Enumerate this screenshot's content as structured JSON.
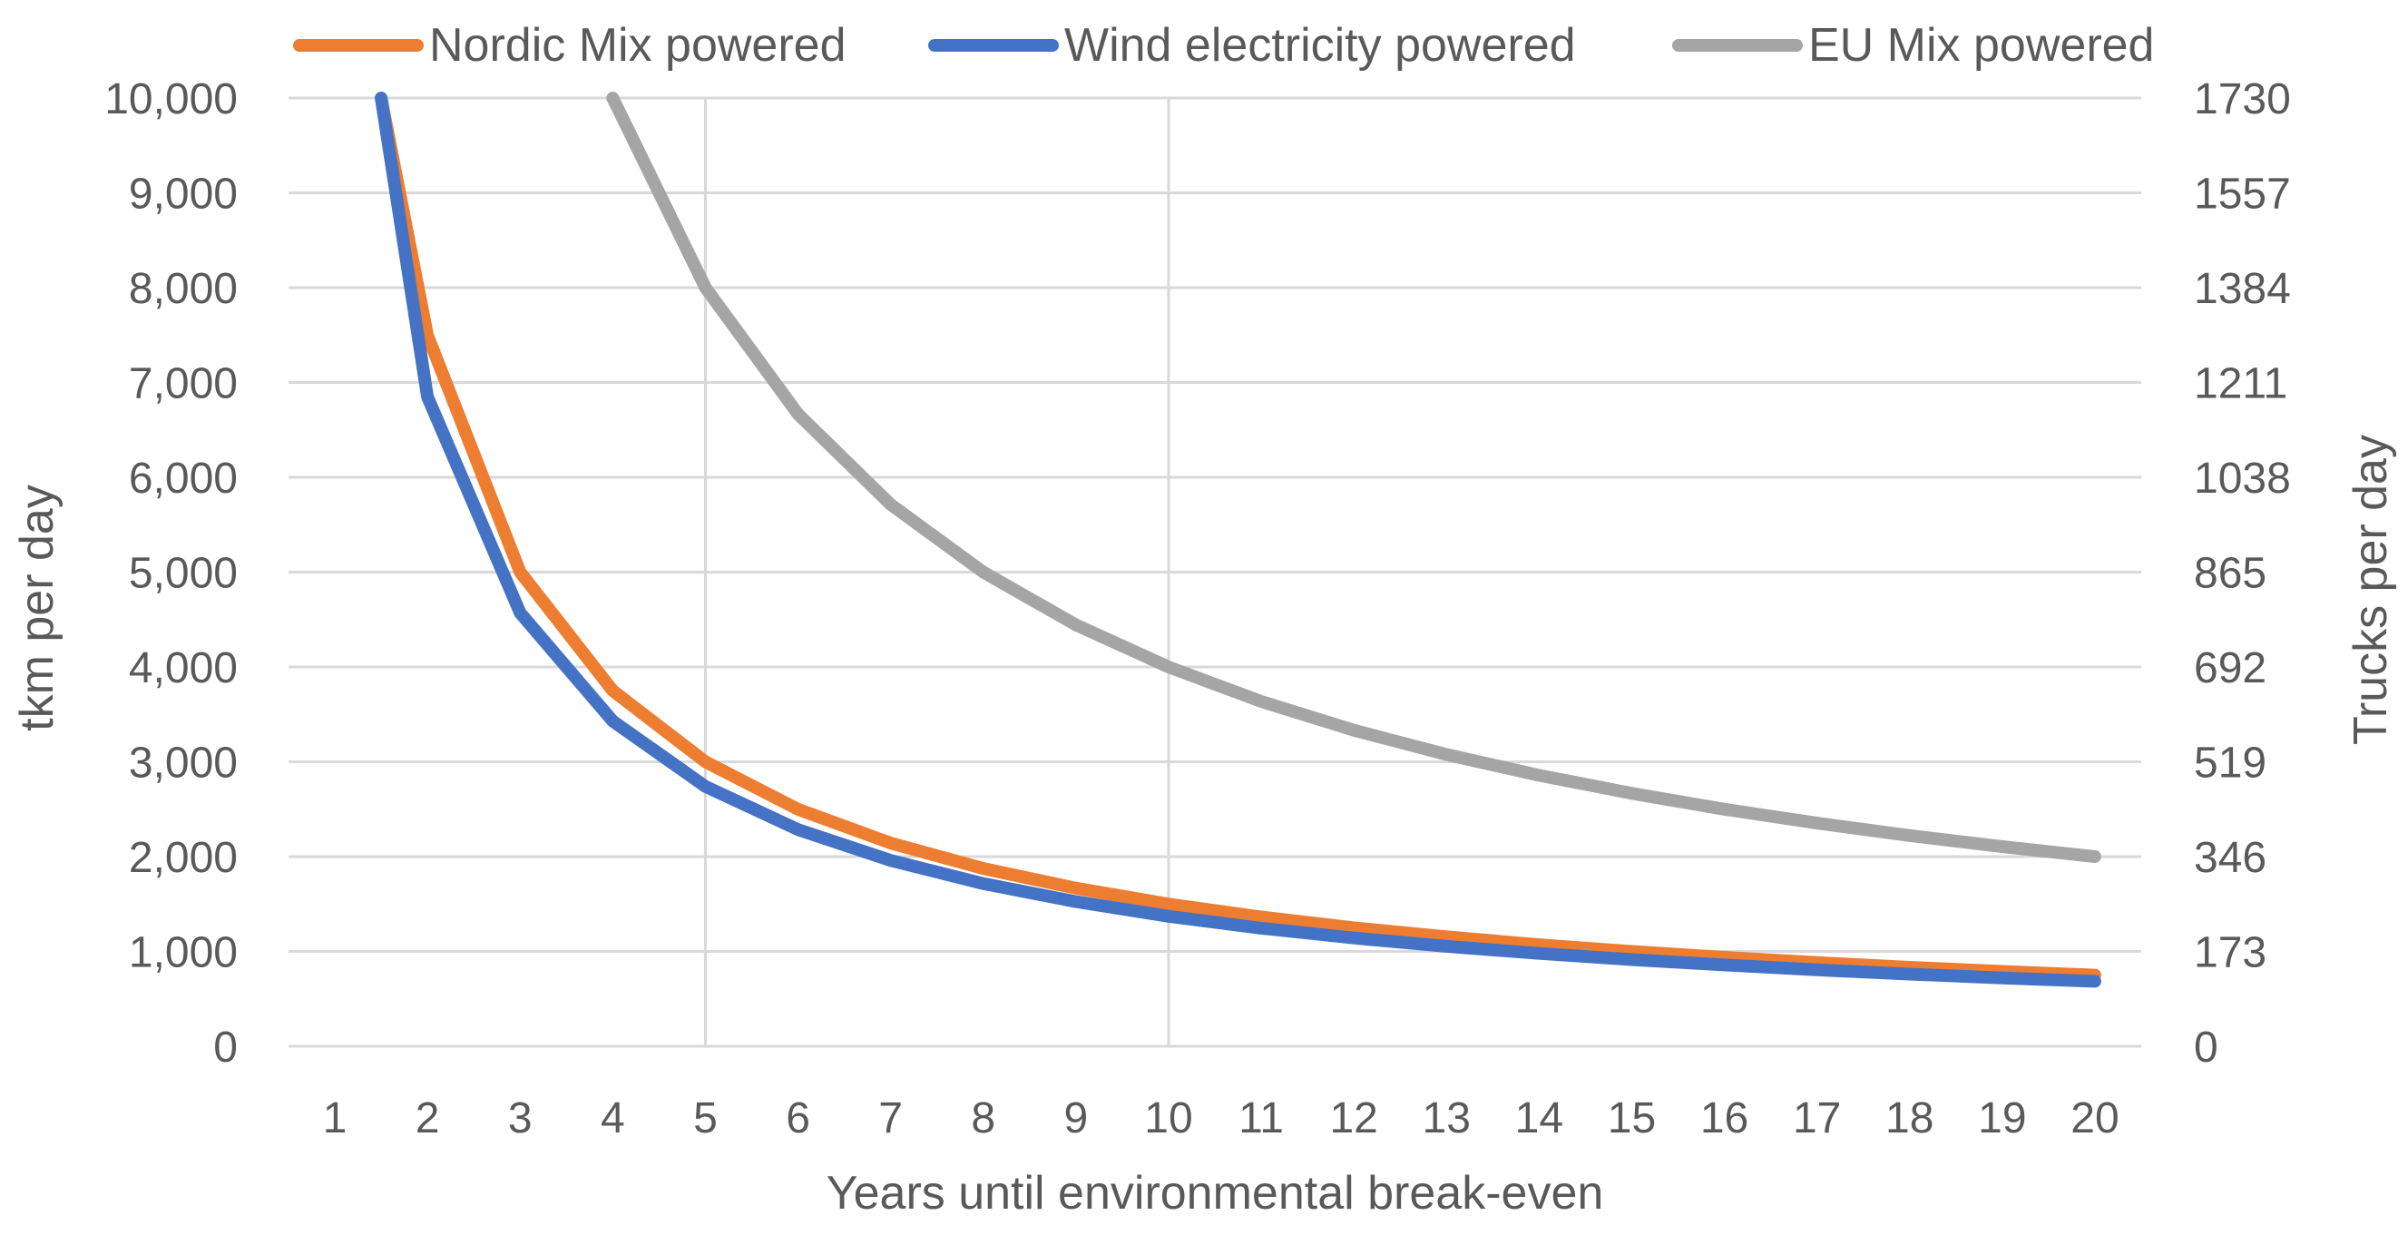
{
  "chart_data": {
    "type": "line",
    "title": "",
    "xlabel": "Years until environmental break-even",
    "ylabel": "tkm per day",
    "y2label": "Trucks per day",
    "categories": [
      "1",
      "2",
      "3",
      "4",
      "5",
      "6",
      "7",
      "8",
      "9",
      "10",
      "11",
      "12",
      "13",
      "14",
      "15",
      "16",
      "17",
      "18",
      "19",
      "20"
    ],
    "ylim": [
      0,
      10000
    ],
    "y_ticks": [
      "0",
      "1,000",
      "2,000",
      "3,000",
      "4,000",
      "5,000",
      "6,000",
      "7,000",
      "8,000",
      "9,000",
      "10,000"
    ],
    "y2_ticks": [
      "0",
      "173",
      "346",
      "519",
      "692",
      "865",
      "1038",
      "1211",
      "1384",
      "1557",
      "1730"
    ],
    "vertical_gridlines_at": [
      5,
      10
    ],
    "legend_position": "top",
    "series": [
      {
        "name": "Nordic Mix powered",
        "color": "#ED7D31",
        "x": [
          1.5,
          2,
          3,
          4,
          5,
          6,
          7,
          8,
          9,
          10,
          11,
          12,
          13,
          14,
          15,
          16,
          17,
          18,
          19,
          20
        ],
        "values": [
          10000,
          7500,
          5000,
          3750,
          3000,
          2500,
          2143,
          1875,
          1667,
          1500,
          1364,
          1250,
          1154,
          1071,
          1000,
          938,
          882,
          833,
          789,
          750
        ]
      },
      {
        "name": "Wind electricity powered",
        "color": "#4472C4",
        "x": [
          1.5,
          2,
          3,
          4,
          5,
          6,
          7,
          8,
          9,
          10,
          11,
          12,
          13,
          14,
          15,
          16,
          17,
          18,
          19,
          20
        ],
        "values": [
          10000,
          6850,
          4570,
          3430,
          2740,
          2285,
          1960,
          1715,
          1525,
          1370,
          1245,
          1142,
          1054,
          979,
          914,
          857,
          806,
          761,
          721,
          685
        ]
      },
      {
        "name": "EU Mix powered",
        "color": "#A5A5A5",
        "x": [
          4,
          5,
          6,
          7,
          8,
          9,
          10,
          11,
          12,
          13,
          14,
          15,
          16,
          17,
          18,
          19,
          20
        ],
        "values": [
          10000,
          8000,
          6667,
          5714,
          5000,
          4444,
          4000,
          3636,
          3333,
          3077,
          2857,
          2667,
          2500,
          2353,
          2222,
          2105,
          2000
        ]
      }
    ]
  }
}
